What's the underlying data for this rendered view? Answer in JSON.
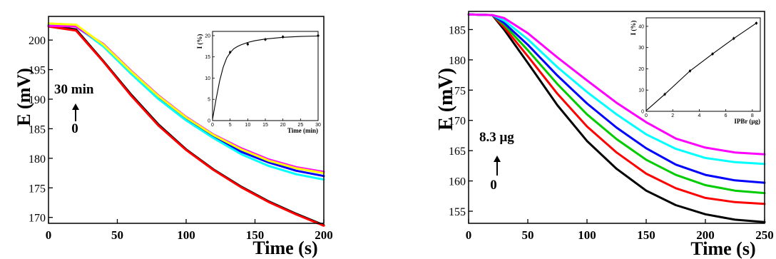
{
  "chart_data": [
    {
      "type": "line",
      "xlabel": "Time (s)",
      "ylabel": "E (mV)",
      "xlim": [
        0,
        200
      ],
      "ylim": [
        169,
        204
      ],
      "xticks": [
        "0",
        "50",
        "100",
        "150",
        "200"
      ],
      "yticks": [
        "170",
        "175",
        "180",
        "185",
        "190",
        "195",
        "200"
      ],
      "annotation": {
        "top": "30 min",
        "bottom": "0"
      },
      "series": [
        {
          "color": "#000000",
          "x": [
            0,
            20,
            40,
            60,
            80,
            100,
            120,
            140,
            160,
            180,
            200
          ],
          "y": [
            202.4,
            201.8,
            196.4,
            190.8,
            185.7,
            181.5,
            178.1,
            175.2,
            172.7,
            170.6,
            168.7
          ]
        },
        {
          "color": "#ff0000",
          "x": [
            0,
            20,
            40,
            60,
            80,
            100,
            120,
            140,
            160,
            180,
            200
          ],
          "y": [
            202.3,
            201.6,
            196.3,
            190.6,
            185.5,
            181.4,
            178.0,
            175.1,
            172.6,
            170.5,
            168.6
          ]
        },
        {
          "color": "#0000ff",
          "x": [
            0,
            20,
            40,
            60,
            80,
            100,
            120,
            140,
            160,
            180,
            200
          ],
          "y": [
            202.5,
            202.3,
            199.0,
            194.5,
            190.3,
            186.6,
            183.7,
            181.1,
            179.3,
            177.9,
            177.0
          ]
        },
        {
          "color": "#00ffff",
          "x": [
            0,
            20,
            40,
            60,
            80,
            100,
            120,
            140,
            160,
            180,
            200
          ],
          "y": [
            202.6,
            202.4,
            198.9,
            194.3,
            190.0,
            186.4,
            183.4,
            180.7,
            178.7,
            177.3,
            176.4
          ]
        },
        {
          "color": "#ff00ff",
          "x": [
            0,
            20,
            40,
            60,
            80,
            100,
            120,
            140,
            160,
            180,
            200
          ],
          "y": [
            202.4,
            202.3,
            199.3,
            194.8,
            190.6,
            187.0,
            184.0,
            181.7,
            179.8,
            178.5,
            177.7
          ]
        },
        {
          "color": "#ffff00",
          "x": [
            0,
            20,
            40,
            60,
            80,
            100,
            120,
            140,
            160,
            180,
            200
          ],
          "y": [
            202.8,
            202.6,
            199.2,
            194.7,
            190.5,
            186.9,
            183.9,
            181.5,
            179.6,
            178.3,
            177.5
          ]
        }
      ],
      "inset": {
        "xlabel": "Time (min)",
        "ylabel": "I (%)",
        "xlim": [
          0,
          30
        ],
        "ylim": [
          0,
          21
        ],
        "xticks": [
          "0",
          "5",
          "10",
          "15",
          "20",
          "25",
          "30"
        ],
        "yticks": [
          "0",
          "5",
          "10",
          "15",
          "20"
        ],
        "points": {
          "x": [
            5,
            10,
            15,
            20,
            30
          ],
          "y": [
            16.1,
            18.0,
            19.1,
            19.7,
            20.0
          ]
        },
        "fit": {
          "x": [
            0,
            1,
            2,
            3,
            4,
            5,
            6,
            7,
            8,
            10,
            12,
            15,
            20,
            25,
            30
          ],
          "y": [
            0.3,
            5.0,
            9.3,
            12.5,
            14.7,
            16.0,
            16.9,
            17.4,
            17.8,
            18.4,
            18.8,
            19.2,
            19.6,
            19.8,
            19.9
          ]
        }
      }
    },
    {
      "type": "line",
      "xlabel": "Time (s)",
      "ylabel": "E (mV)",
      "xlim": [
        0,
        250
      ],
      "ylim": [
        153,
        188
      ],
      "xticks": [
        "0",
        "50",
        "100",
        "150",
        "200",
        "250"
      ],
      "yticks": [
        "155",
        "160",
        "165",
        "170",
        "175",
        "180",
        "185"
      ],
      "annotation": {
        "top": "8.3 μg",
        "bottom": "0"
      },
      "series": [
        {
          "color": "#000000",
          "x": [
            0,
            20,
            30,
            50,
            75,
            100,
            125,
            150,
            175,
            200,
            225,
            250
          ],
          "y": [
            187.5,
            187.4,
            185.0,
            179.5,
            172.5,
            166.6,
            162.0,
            158.4,
            156.0,
            154.5,
            153.6,
            153.2
          ]
        },
        {
          "color": "#ff0000",
          "x": [
            0,
            20,
            30,
            50,
            75,
            100,
            125,
            150,
            175,
            200,
            225,
            250
          ],
          "y": [
            187.5,
            187.4,
            185.4,
            180.6,
            174.4,
            169.0,
            164.7,
            161.2,
            158.8,
            157.2,
            156.5,
            156.2
          ]
        },
        {
          "color": "#00cc00",
          "x": [
            0,
            20,
            30,
            50,
            75,
            100,
            125,
            150,
            175,
            200,
            225,
            250
          ],
          "y": [
            187.5,
            187.4,
            185.8,
            181.6,
            176.0,
            171.0,
            166.9,
            163.5,
            161.0,
            159.3,
            158.4,
            158.0
          ]
        },
        {
          "color": "#0000ff",
          "x": [
            0,
            20,
            30,
            50,
            75,
            100,
            125,
            150,
            175,
            200,
            225,
            250
          ],
          "y": [
            187.5,
            187.4,
            186.1,
            182.5,
            177.4,
            172.8,
            168.8,
            165.4,
            162.7,
            161.0,
            160.1,
            159.7
          ]
        },
        {
          "color": "#00ffff",
          "x": [
            0,
            20,
            30,
            50,
            75,
            100,
            125,
            150,
            175,
            200,
            225,
            250
          ],
          "y": [
            187.5,
            187.4,
            186.5,
            183.4,
            178.8,
            174.7,
            171.0,
            167.7,
            165.3,
            163.8,
            163.1,
            162.8
          ]
        },
        {
          "color": "#ff00ff",
          "x": [
            0,
            20,
            30,
            50,
            75,
            100,
            125,
            150,
            175,
            200,
            225,
            250
          ],
          "y": [
            187.5,
            187.4,
            186.9,
            184.4,
            180.4,
            176.6,
            172.9,
            169.7,
            167.0,
            165.5,
            164.7,
            164.4
          ]
        }
      ],
      "inset": {
        "xlabel": "IPBr (μg)",
        "ylabel": "I (%)",
        "xlim": [
          0,
          8.6
        ],
        "ylim": [
          0,
          44
        ],
        "xticks": [
          "0",
          "2",
          "4",
          "6",
          "8"
        ],
        "yticks": [
          "0",
          "10",
          "20",
          "30",
          "40"
        ],
        "points": {
          "x": [
            1.4,
            3.3,
            5.0,
            6.6,
            8.3
          ],
          "y": [
            8.0,
            19.0,
            27.0,
            34.3,
            41.5
          ]
        },
        "fit": {
          "x": [
            0,
            1.4,
            3.3,
            5.0,
            6.6,
            8.3
          ],
          "y": [
            0.3,
            8.0,
            19.0,
            27.0,
            34.3,
            41.5
          ]
        }
      }
    }
  ]
}
